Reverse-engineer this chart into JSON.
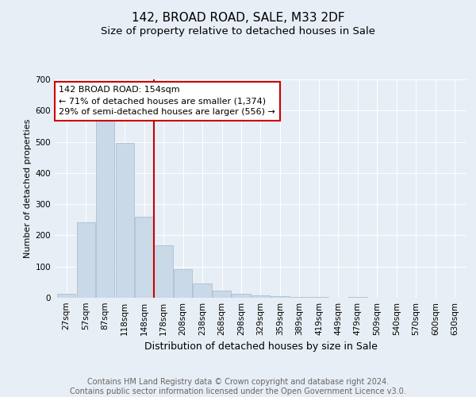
{
  "title": "142, BROAD ROAD, SALE, M33 2DF",
  "subtitle": "Size of property relative to detached houses in Sale",
  "xlabel": "Distribution of detached houses by size in Sale",
  "ylabel": "Number of detached properties",
  "bar_labels": [
    "27sqm",
    "57sqm",
    "87sqm",
    "118sqm",
    "148sqm",
    "178sqm",
    "208sqm",
    "238sqm",
    "268sqm",
    "298sqm",
    "329sqm",
    "359sqm",
    "389sqm",
    "419sqm",
    "449sqm",
    "479sqm",
    "509sqm",
    "540sqm",
    "570sqm",
    "600sqm",
    "630sqm"
  ],
  "bar_values": [
    12,
    243,
    577,
    497,
    260,
    168,
    92,
    47,
    22,
    12,
    8,
    5,
    3,
    2,
    0,
    3,
    1,
    0,
    0,
    0,
    0
  ],
  "bar_color": "#c9d9e8",
  "bar_edgecolor": "#a0b8d0",
  "vline_x": 4.5,
  "vline_color": "#cc0000",
  "annotation_line1": "142 BROAD ROAD: 154sqm",
  "annotation_line2": "← 71% of detached houses are smaller (1,374)",
  "annotation_line3": "29% of semi-detached houses are larger (556) →",
  "annotation_box_color": "#ffffff",
  "annotation_box_edgecolor": "#cc0000",
  "ylim": [
    0,
    700
  ],
  "yticks": [
    0,
    100,
    200,
    300,
    400,
    500,
    600,
    700
  ],
  "background_color": "#e8eef5",
  "plot_background": "#e8eef5",
  "footer_text": "Contains HM Land Registry data © Crown copyright and database right 2024.\nContains public sector information licensed under the Open Government Licence v3.0.",
  "title_fontsize": 11,
  "subtitle_fontsize": 9.5,
  "xlabel_fontsize": 9,
  "ylabel_fontsize": 8,
  "footer_fontsize": 7,
  "tick_fontsize": 7.5,
  "annot_fontsize": 8
}
